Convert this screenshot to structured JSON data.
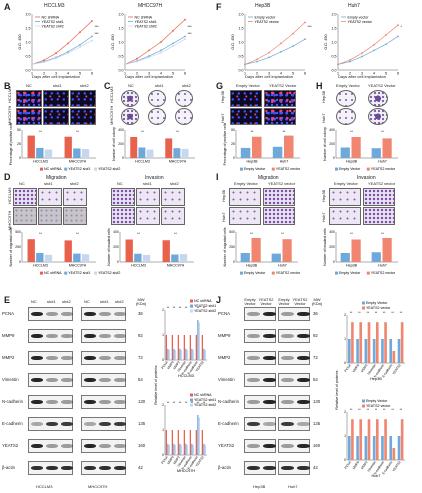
{
  "letters": [
    "A",
    "B",
    "C",
    "D",
    "E",
    "F",
    "G",
    "H",
    "I",
    "J"
  ],
  "A": {
    "left": {
      "title": "HCCLM3",
      "legend": [
        "NC shRNA",
        "YEATS2 sh#1",
        "YEATS2 sh#2"
      ],
      "ylabel": "O.D. 450",
      "xlabel": "Days after cell implantation",
      "sig": [
        "***",
        "***"
      ]
    },
    "right": {
      "title": "MHCC97H",
      "legend": [
        "NC shRNA",
        "YEATS2 sh#1",
        "YEATS2 sh#2"
      ],
      "ylabel": "O.D. 450",
      "xlabel": "Days after cell implantation",
      "sig": [
        "***",
        "***"
      ]
    }
  },
  "F": {
    "left": {
      "title": "Hep3B",
      "legend": [
        "Empty vector",
        "YEATS2 vector"
      ],
      "ylabel": "O.D. 450",
      "xlabel": "Days after cell implantation",
      "sig": [
        "***"
      ]
    },
    "right": {
      "title": "Huh7",
      "legend": [
        "Empty vector",
        "YEATS2 vector"
      ],
      "ylabel": "O.D. 450",
      "xlabel": "Days after cell implantation",
      "sig": [
        "*"
      ]
    }
  },
  "B": {
    "cols": [
      "NC",
      "sh#1",
      "sh#2"
    ],
    "rows": [
      "HCCLM3",
      "MHCC97H"
    ],
    "ylabel": "Percentage of positive cells",
    "xcats": [
      "HCCLM3",
      "MHCC97H"
    ],
    "legend": [
      "NC shRNA",
      "YEATS2 sh#1",
      "YEATS2 sh#2"
    ]
  },
  "C": {
    "cols": [
      "NC",
      "sh#1",
      "sh#2"
    ],
    "rows": [
      "HCCLM3",
      "MHCC97H"
    ],
    "ylabel": "Number of cell colony",
    "xcats": [
      "HCCLM3",
      "MHCC97H"
    ]
  },
  "G": {
    "cols": [
      "Empty Vector",
      "YEATS2 Vector"
    ],
    "rows": [
      "Hep3B",
      "Huh7"
    ],
    "ylabel": "Percentage of positive cells",
    "xcats": [
      "Hep3B",
      "Huh7"
    ],
    "legend": [
      "Empty Vector",
      "YEATS2 vector"
    ]
  },
  "H": {
    "cols": [
      "Empty Vector",
      "YEATS2 Vector"
    ],
    "rows": [
      "Hep3B",
      "Huh7"
    ],
    "ylabel": "Number of cell colony",
    "xcats": [
      "Hep3B",
      "Huh7"
    ],
    "legend": [
      "Empty Vector",
      "YEATS2 vector"
    ]
  },
  "D": {
    "titles": [
      "Migration",
      "Invasion"
    ],
    "cols": [
      "NC",
      "sh#1",
      "sh#2"
    ],
    "rows": [
      "HCCLM3",
      "MHCC97H"
    ],
    "ylabels": [
      "Number of migrated cells",
      "Number of invaded cells"
    ],
    "xcats": [
      "HCCLM3",
      "MHCC97H"
    ],
    "legend": [
      "NC shRNA",
      "YEATS2 sh#1",
      "YEATS2 sh#2"
    ]
  },
  "I": {
    "titles": [
      "Migration",
      "Invasion"
    ],
    "cols": [
      "Empty Vector",
      "YEATS2 vector"
    ],
    "rows": [
      "Hep3B",
      "Huh7"
    ],
    "ylabels": [
      "Number of migrated cells",
      "Number of invaded cells"
    ],
    "xcats": [
      "Hep3B",
      "Huh7"
    ],
    "legend": [
      "Empty Vector",
      "YEATS2 vector"
    ]
  },
  "E": {
    "cols": [
      "NC",
      "sh#1",
      "sh#2",
      "NC",
      "sh#1",
      "sh#2"
    ],
    "mw_label": "MW (KDa)",
    "proteins": [
      {
        "name": "PCNA",
        "mw": "36"
      },
      {
        "name": "MMP9",
        "mw": "92"
      },
      {
        "name": "MMP2",
        "mw": "72"
      },
      {
        "name": "Vimentin",
        "mw": "54"
      },
      {
        "name": "N-cadherin",
        "mw": "130"
      },
      {
        "name": "E-cadherin",
        "mw": "135"
      },
      {
        "name": "YEATS2",
        "mw": "160"
      },
      {
        "name": "β-actin",
        "mw": "42"
      }
    ],
    "cells": [
      "HCCLM3",
      "MHCC97H"
    ],
    "chart_legend": [
      "NC shRNA",
      "YEATS2 sh#1",
      "YEATS2 sh#2"
    ],
    "chart_ylabel": "Relative level of proteins",
    "chart_titles": [
      "HCCLM3",
      "MHCC97H"
    ]
  },
  "J": {
    "cols": [
      "Empty Vector",
      "YEATS2 Vector",
      "Empty Vector",
      "YEATS2 Vector"
    ],
    "mw_label": "MW (KDa)",
    "proteins": [
      {
        "name": "PCNA",
        "mw": "36"
      },
      {
        "name": "MMP9",
        "mw": "92"
      },
      {
        "name": "MMP2",
        "mw": "72"
      },
      {
        "name": "Vimentin",
        "mw": "54"
      },
      {
        "name": "N-cadherin",
        "mw": "130"
      },
      {
        "name": "E-cadherin",
        "mw": "135"
      },
      {
        "name": "YEATS2",
        "mw": "160"
      },
      {
        "name": "β-actin",
        "mw": "42"
      }
    ],
    "cells": [
      "Hep3B",
      "Huh7"
    ],
    "chart_legend": [
      "Empty Vector",
      "YEATS2 vector"
    ],
    "chart_ylabel": "Relative level of proteins",
    "chart_titles": [
      "Hep3B",
      "Huh7"
    ]
  },
  "colors": {
    "nc": "#e8614d",
    "sh1": "#6ea9d9",
    "sh2": "#c7d8ee",
    "empty": "#6ea9d9",
    "yeats": "#f0866f"
  },
  "chart_data": [
    {
      "type": "line",
      "title": "HCCLM3",
      "x": [
        1,
        2,
        3,
        4,
        5,
        6
      ],
      "series": [
        {
          "name": "NC shRNA",
          "values": [
            0.2,
            0.35,
            0.6,
            0.95,
            1.35,
            1.75
          ]
        },
        {
          "name": "YEATS2 sh#1",
          "values": [
            0.2,
            0.3,
            0.45,
            0.65,
            0.9,
            1.2
          ]
        },
        {
          "name": "YEATS2 sh#2",
          "values": [
            0.2,
            0.28,
            0.42,
            0.6,
            0.82,
            1.05
          ]
        }
      ],
      "ylim": [
        0,
        2
      ]
    },
    {
      "type": "line",
      "title": "MHCC97H",
      "x": [
        1,
        2,
        3,
        4,
        5,
        6
      ],
      "series": [
        {
          "name": "NC shRNA",
          "values": [
            0.2,
            0.4,
            0.7,
            1.0,
            1.4,
            1.8
          ]
        },
        {
          "name": "YEATS2 sh#1",
          "values": [
            0.2,
            0.32,
            0.5,
            0.7,
            0.95,
            1.2
          ]
        },
        {
          "name": "YEATS2 sh#2",
          "values": [
            0.2,
            0.3,
            0.45,
            0.62,
            0.85,
            1.1
          ]
        }
      ],
      "ylim": [
        0,
        2
      ]
    },
    {
      "type": "line",
      "title": "Hep3B",
      "x": [
        1,
        2,
        3,
        4,
        5,
        6
      ],
      "series": [
        {
          "name": "Empty vector",
          "values": [
            0.2,
            0.3,
            0.45,
            0.65,
            0.85,
            1.1
          ]
        },
        {
          "name": "YEATS2 vector",
          "values": [
            0.2,
            0.38,
            0.62,
            0.95,
            1.3,
            1.7
          ]
        }
      ],
      "ylim": [
        0,
        2
      ]
    },
    {
      "type": "line",
      "title": "Huh7",
      "x": [
        1,
        2,
        3,
        4,
        5,
        6
      ],
      "series": [
        {
          "name": "Empty vector",
          "values": [
            0.2,
            0.3,
            0.48,
            0.7,
            0.92,
            1.2
          ]
        },
        {
          "name": "YEATS2 vector",
          "values": [
            0.2,
            0.36,
            0.6,
            0.9,
            1.25,
            1.6
          ]
        }
      ],
      "ylim": [
        0,
        2
      ]
    },
    {
      "type": "bar",
      "categories": [
        "HCCLM3",
        "MHCC97H"
      ],
      "series": [
        {
          "name": "NC shRNA",
          "values": [
            40,
            38
          ]
        },
        {
          "name": "YEATS2 sh#1",
          "values": [
            18,
            17
          ]
        },
        {
          "name": "YEATS2 sh#2",
          "values": [
            15,
            16
          ]
        }
      ],
      "ylim": [
        0,
        50
      ]
    },
    {
      "type": "bar",
      "categories": [
        "HCCLM3",
        "MHCC97H"
      ],
      "series": [
        {
          "name": "NC shRNA",
          "values": [
            300,
            280
          ]
        },
        {
          "name": "YEATS2 sh#1",
          "values": [
            150,
            140
          ]
        },
        {
          "name": "YEATS2 sh#2",
          "values": [
            120,
            130
          ]
        }
      ],
      "ylim": [
        0,
        400
      ]
    },
    {
      "type": "bar",
      "categories": [
        "Hep3B",
        "Huh7"
      ],
      "series": [
        {
          "name": "Empty Vector",
          "values": [
            18,
            20
          ]
        },
        {
          "name": "YEATS2 vector",
          "values": [
            38,
            40
          ]
        }
      ],
      "ylim": [
        0,
        50
      ]
    },
    {
      "type": "bar",
      "categories": [
        "Hep3B",
        "Huh7"
      ],
      "series": [
        {
          "name": "Empty Vector",
          "values": [
            150,
            140
          ]
        },
        {
          "name": "YEATS2 vector",
          "values": [
            300,
            280
          ]
        }
      ],
      "ylim": [
        0,
        400
      ]
    },
    {
      "type": "bar",
      "categories": [
        "HCCLM3",
        "MHCC97H"
      ],
      "series": [
        {
          "name": "NC shRNA",
          "values": [
            380,
            360
          ]
        },
        {
          "name": "YEATS2 sh#1",
          "values": [
            150,
            140
          ]
        },
        {
          "name": "YEATS2 sh#2",
          "values": [
            120,
            130
          ]
        }
      ],
      "ylim": [
        0,
        500
      ]
    },
    {
      "type": "bar",
      "categories": [
        "HCCLM3",
        "MHCC97H"
      ],
      "series": [
        {
          "name": "NC shRNA",
          "values": [
            300,
            290
          ]
        },
        {
          "name": "YEATS2 sh#1",
          "values": [
            110,
            100
          ]
        },
        {
          "name": "YEATS2 sh#2",
          "values": [
            95,
            105
          ]
        }
      ],
      "ylim": [
        0,
        400
      ]
    },
    {
      "type": "bar",
      "categories": [
        "Hep3B",
        "Huh7"
      ],
      "series": [
        {
          "name": "Empty Vector",
          "values": [
            150,
            140
          ]
        },
        {
          "name": "YEATS2 vector",
          "values": [
            400,
            380
          ]
        }
      ],
      "ylim": [
        0,
        500
      ]
    },
    {
      "type": "bar",
      "categories": [
        "Hep3B",
        "Huh7"
      ],
      "series": [
        {
          "name": "Empty Vector",
          "values": [
            120,
            130
          ]
        },
        {
          "name": "YEATS2 vector",
          "values": [
            300,
            320
          ]
        }
      ],
      "ylim": [
        0,
        400
      ]
    }
  ]
}
